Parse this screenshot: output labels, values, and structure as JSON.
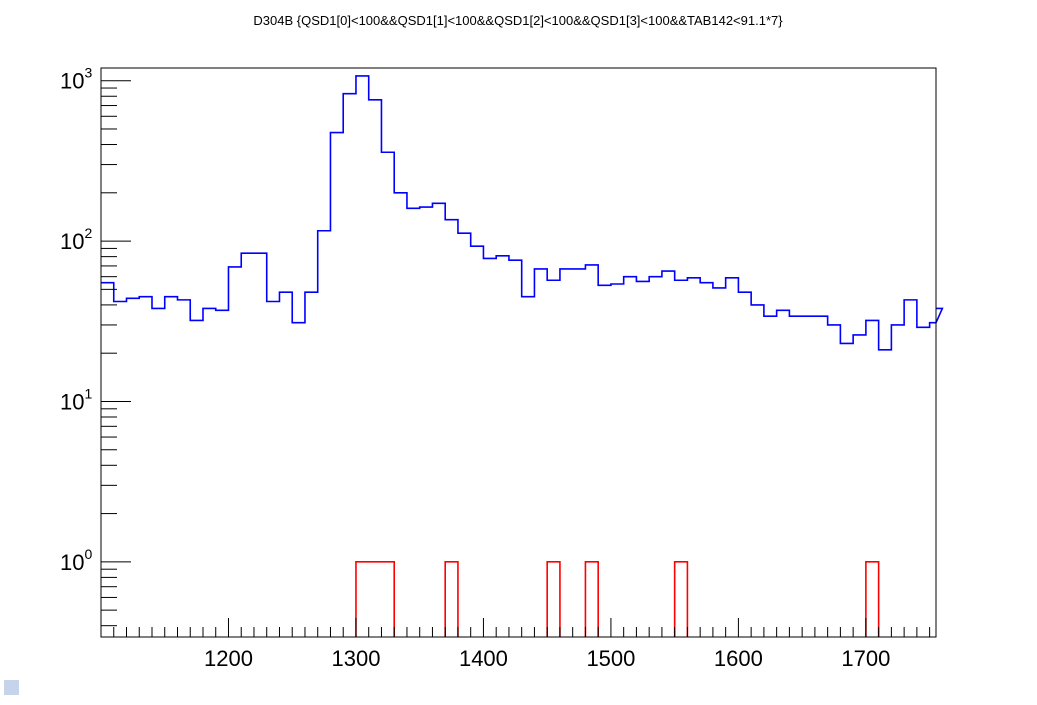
{
  "chart_data": {
    "type": "histogram",
    "title": "D304B {QSD1[0]<100&&QSD1[1]<100&&QSD1[2]<100&&QSD1[3]<100&&TAB142<91.1*7}",
    "xlabel": "",
    "ylabel": "",
    "xlim": [
      1100,
      1755
    ],
    "ylim": [
      0.34,
      1200
    ],
    "yscale": "log",
    "grid": false,
    "x_ticks": [
      1200,
      1300,
      1400,
      1500,
      1600,
      1700
    ],
    "y_ticks": [
      {
        "base": "10",
        "exp": "0",
        "value": 1
      },
      {
        "base": "10",
        "exp": "1",
        "value": 10
      },
      {
        "base": "10",
        "exp": "2",
        "value": 100
      },
      {
        "base": "10",
        "exp": "3",
        "value": 1000
      }
    ],
    "bin_width": 10,
    "series": [
      {
        "color": "#0000ff",
        "bins_start": 1100,
        "values": [
          55,
          42,
          44,
          45,
          38,
          45,
          43,
          32,
          38,
          37,
          69,
          84,
          84,
          42,
          48,
          31,
          48,
          116,
          475,
          830,
          1070,
          760,
          358,
          200,
          160,
          163,
          172,
          136,
          112,
          93,
          78,
          81,
          76,
          45,
          67,
          57,
          67,
          67,
          71,
          53,
          54,
          60,
          56,
          60,
          65,
          57,
          59,
          55,
          51,
          59,
          48,
          40,
          34,
          37,
          34,
          34,
          34,
          30,
          23,
          26,
          32,
          21,
          30,
          43,
          29,
          31,
          38
        ]
      },
      {
        "color": "#ff0000",
        "bins": [
          {
            "x0": 1300,
            "x1": 1330,
            "value": 1
          },
          {
            "x0": 1370,
            "x1": 1380,
            "value": 1
          },
          {
            "x0": 1450,
            "x1": 1460,
            "value": 1
          },
          {
            "x0": 1480,
            "x1": 1490,
            "value": 1
          },
          {
            "x0": 1550,
            "x1": 1560,
            "value": 1
          },
          {
            "x0": 1700,
            "x1": 1710,
            "value": 1
          }
        ]
      }
    ]
  }
}
